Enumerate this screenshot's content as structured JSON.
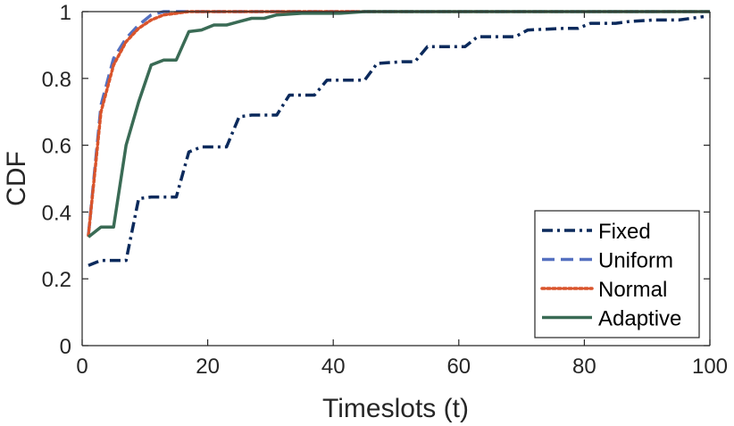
{
  "chart_data": {
    "type": "line",
    "title": "",
    "xlabel": "Timeslots (t)",
    "ylabel": "CDF",
    "xlim": [
      0,
      100
    ],
    "ylim": [
      0,
      1
    ],
    "xticks": [
      0,
      20,
      40,
      60,
      80,
      100
    ],
    "yticks": [
      0,
      0.2,
      0.4,
      0.6,
      0.8,
      1
    ],
    "ytick_labels": [
      "0",
      "0.2",
      "0.4",
      "0.6",
      "0.8",
      "1"
    ],
    "grid": false,
    "legend_position": "bottom-right",
    "series": [
      {
        "name": "Fixed",
        "color": "#0b2a5c",
        "style": "dashdot",
        "step": true,
        "points": [
          [
            1,
            0.24
          ],
          [
            3,
            0.255
          ],
          [
            7,
            0.255
          ],
          [
            9,
            0.44
          ],
          [
            11,
            0.445
          ],
          [
            15,
            0.445
          ],
          [
            17,
            0.58
          ],
          [
            19,
            0.595
          ],
          [
            23,
            0.595
          ],
          [
            25,
            0.685
          ],
          [
            27,
            0.69
          ],
          [
            31,
            0.69
          ],
          [
            33,
            0.75
          ],
          [
            37,
            0.75
          ],
          [
            39,
            0.795
          ],
          [
            45,
            0.795
          ],
          [
            47,
            0.845
          ],
          [
            51,
            0.85
          ],
          [
            53,
            0.85
          ],
          [
            55,
            0.895
          ],
          [
            61,
            0.895
          ],
          [
            63,
            0.925
          ],
          [
            69,
            0.925
          ],
          [
            71,
            0.945
          ],
          [
            77,
            0.95
          ],
          [
            79,
            0.95
          ],
          [
            81,
            0.965
          ],
          [
            85,
            0.965
          ],
          [
            87,
            0.97
          ],
          [
            91,
            0.975
          ],
          [
            95,
            0.975
          ],
          [
            97,
            0.98
          ],
          [
            99,
            0.985
          ]
        ]
      },
      {
        "name": "Uniform",
        "color": "#5571c0",
        "style": "dashed",
        "step": false,
        "points": [
          [
            1,
            0.33
          ],
          [
            3,
            0.72
          ],
          [
            5,
            0.86
          ],
          [
            7,
            0.92
          ],
          [
            9,
            0.96
          ],
          [
            11,
            0.99
          ],
          [
            13,
            1.0
          ],
          [
            100,
            1.0
          ]
        ]
      },
      {
        "name": "Normal",
        "color": "#d9542c",
        "style": "dotted",
        "step": false,
        "points": [
          [
            1,
            0.33
          ],
          [
            3,
            0.7
          ],
          [
            5,
            0.84
          ],
          [
            7,
            0.91
          ],
          [
            9,
            0.95
          ],
          [
            11,
            0.975
          ],
          [
            13,
            0.99
          ],
          [
            15,
            0.995
          ],
          [
            17,
            1.0
          ],
          [
            100,
            1.0
          ]
        ]
      },
      {
        "name": "Adaptive",
        "color": "#3a6b55",
        "style": "solid",
        "step": false,
        "points": [
          [
            1,
            0.325
          ],
          [
            3,
            0.355
          ],
          [
            5,
            0.355
          ],
          [
            7,
            0.6
          ],
          [
            9,
            0.73
          ],
          [
            11,
            0.84
          ],
          [
            13,
            0.855
          ],
          [
            15,
            0.855
          ],
          [
            17,
            0.94
          ],
          [
            19,
            0.945
          ],
          [
            21,
            0.96
          ],
          [
            23,
            0.96
          ],
          [
            25,
            0.97
          ],
          [
            27,
            0.98
          ],
          [
            29,
            0.98
          ],
          [
            31,
            0.99
          ],
          [
            35,
            0.995
          ],
          [
            41,
            0.995
          ],
          [
            45,
            1.0
          ],
          [
            100,
            1.0
          ]
        ]
      }
    ]
  }
}
